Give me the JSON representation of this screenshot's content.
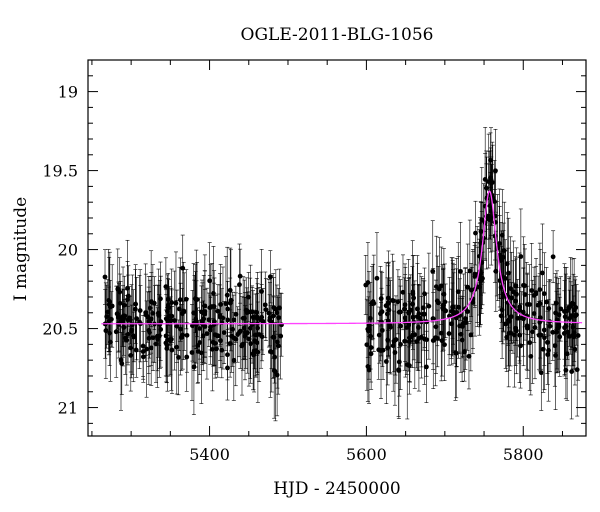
{
  "chart_data": {
    "type": "scatter",
    "title": "OGLE-2011-BLG-1056",
    "xlabel": "HJD - 2450000",
    "ylabel": "I magnitude",
    "xlim": [
      5245,
      5880
    ],
    "ylim": [
      21.18,
      18.8
    ],
    "y_inverted": true,
    "x_ticks": [
      5400,
      5600,
      5800
    ],
    "x_tick_labels": [
      "5400",
      "5600",
      "5800"
    ],
    "y_ticks": [
      19,
      19.5,
      20,
      20.5,
      21
    ],
    "y_tick_labels": [
      "19",
      "19.5",
      "20",
      "20.5",
      "21"
    ],
    "grid": false,
    "legend": "none",
    "colors": {
      "data": "#000000",
      "model": "#ff44ff",
      "axis": "#000000"
    },
    "series": [
      {
        "kind": "observations-with-errorbars",
        "seasons": [
          {
            "x_range": [
              5265,
              5492
            ],
            "baseline_mag": 20.47,
            "scatter_mag": 0.22,
            "typical_error_mag": 0.25
          },
          {
            "x_range": [
              5598,
              5870
            ],
            "baseline_mag": 20.47,
            "scatter_mag": 0.25,
            "typical_error_mag": 0.27
          }
        ]
      },
      {
        "kind": "model-curve",
        "baseline_mag": 20.47,
        "peak_time": 5757,
        "peak_mag": 19.63,
        "x_range": [
          5262,
          5875
        ]
      }
    ]
  }
}
